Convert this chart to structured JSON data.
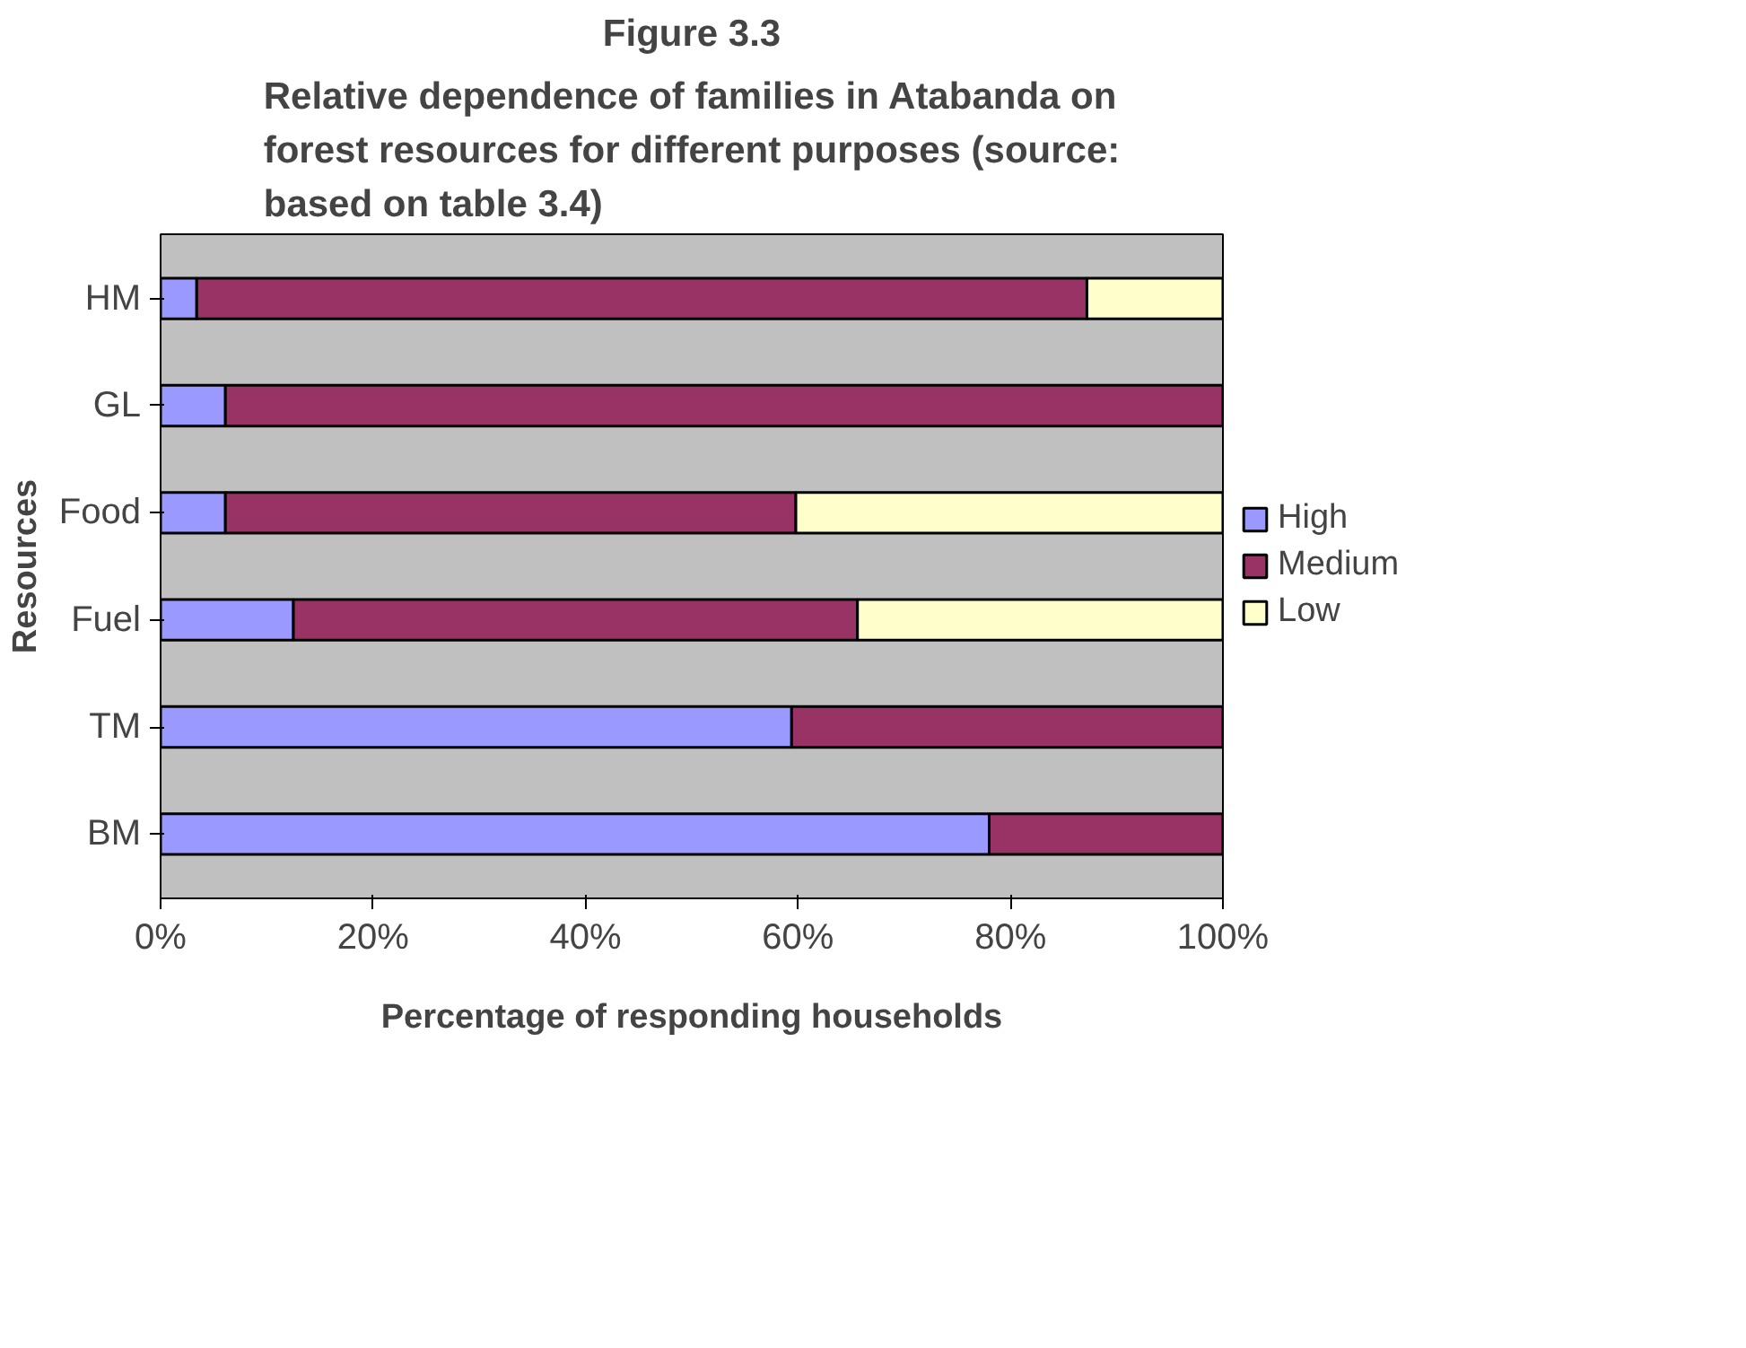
{
  "chart_data": {
    "type": "bar",
    "orientation": "horizontal",
    "stacked": true,
    "title": "Figure 3.3",
    "subtitle": "Relative dependence of families in Atabanda on forest resources for different purposes (source: based on table 3.4)",
    "xlabel": "Percentage of responding households",
    "ylabel": "Resources",
    "categories": [
      "HM",
      "GL",
      "Food",
      "Fuel",
      "TM",
      "BM"
    ],
    "series": [
      {
        "name": "High",
        "color": "#9999ff",
        "values": [
          3.4,
          6.1,
          6.1,
          12.5,
          59.4,
          78.0
        ]
      },
      {
        "name": "Medium",
        "color": "#993366",
        "values": [
          83.8,
          93.9,
          53.7,
          53.1,
          40.6,
          22.0
        ]
      },
      {
        "name": "Low",
        "color": "#ffffcc",
        "values": [
          12.8,
          null,
          40.2,
          34.4,
          null,
          null
        ]
      }
    ],
    "xlim": [
      0,
      100
    ],
    "xticks": [
      {
        "value": 0,
        "label": "0%"
      },
      {
        "value": 20,
        "label": "20%"
      },
      {
        "value": 40,
        "label": "40%"
      },
      {
        "value": 60,
        "label": "60%"
      },
      {
        "value": 80,
        "label": "80%"
      },
      {
        "value": 100,
        "label": "100%"
      }
    ],
    "grid": false,
    "legend": "right"
  }
}
